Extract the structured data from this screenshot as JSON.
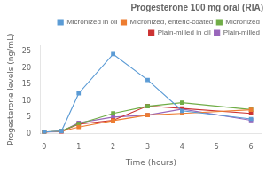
{
  "chart_data": {
    "type": "line",
    "title": "Progesterone 100 mg oral (RIA)",
    "x_label": "Time (hours)",
    "y_label": "Progesterone levels (ng/mL)",
    "x": [
      0,
      0.5,
      1,
      2,
      3,
      4,
      6
    ],
    "series": [
      {
        "name": "Micronized in oil",
        "color": "#5B9BD5",
        "marker": "square",
        "values": [
          0.5,
          0.8,
          12.3,
          24.3,
          16.4,
          7.0,
          4.5
        ]
      },
      {
        "name": "Micronized, enteric-coated",
        "color": "#ED7D31",
        "marker": "square",
        "values": [
          0.5,
          0.7,
          2.0,
          4.0,
          5.7,
          6.2,
          7.3
        ]
      },
      {
        "name": "Micronized",
        "color": "#70AD47",
        "marker": "square",
        "values": [
          0.5,
          0.8,
          3.0,
          6.2,
          8.4,
          9.5,
          7.4
        ]
      },
      {
        "name": "Plain-milled in oil",
        "color": "#CC3333",
        "marker": "square",
        "values": [
          0.5,
          0.7,
          2.9,
          4.1,
          8.5,
          7.7,
          6.2
        ]
      },
      {
        "name": "Plain-milled",
        "color": "#9966BB",
        "marker": "square",
        "values": [
          0.5,
          0.6,
          3.3,
          5.1,
          5.7,
          7.5,
          4.1
        ]
      }
    ],
    "xlim": [
      -0.1,
      6.3
    ],
    "ylim": [
      0,
      27
    ],
    "xticks": [
      0,
      1,
      2,
      3,
      4,
      5,
      6
    ],
    "yticks": [
      0,
      5,
      10,
      15,
      20,
      25
    ],
    "grid": false,
    "legend": "top"
  }
}
